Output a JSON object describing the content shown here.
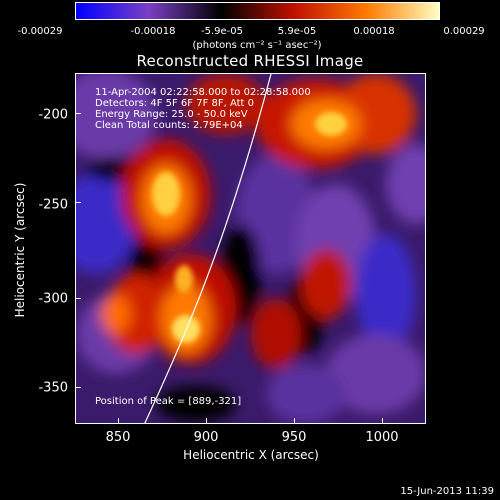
{
  "colorbar": {
    "tick_labels": [
      "-0.00029",
      "-0.00018",
      "-5.9e-05",
      "5.9e-05",
      "0.00018",
      "0.00029"
    ],
    "units": "(photons cm⁻² s⁻¹ asec⁻²)",
    "colors": [
      "#0000ff",
      "#7b3fc4",
      "#000000",
      "#c01000",
      "#ff7a00",
      "#ffffc0"
    ]
  },
  "plot": {
    "title": "Reconstructed RHESSI Image",
    "info": {
      "time_range": "11-Apr-2004 02:22:58.000 to 02:28:58.000",
      "detectors": "Detectors: 4F 5F 6F 7F 8F, Att 0",
      "energy": "Energy Range: 25.0 - 50.0 keV",
      "clean": "Clean     Total counts: 2.79E+04"
    },
    "peak": "Position of Peak = [889,-321]",
    "x_axis": {
      "label": "Heliocentric X (arcsec)",
      "ticks": [
        "850",
        "900",
        "950",
        "1000"
      ]
    },
    "y_axis": {
      "label": "Heliocentric Y (arcsec)",
      "ticks": [
        "-200",
        "-250",
        "-300",
        "-350"
      ]
    }
  },
  "timestamp": "15-Jun-2013 11:39"
}
